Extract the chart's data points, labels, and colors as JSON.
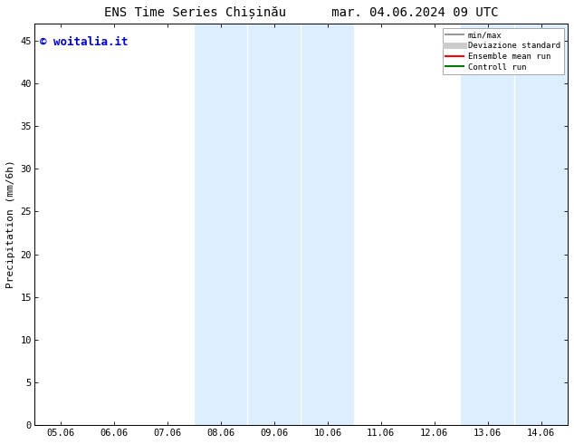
{
  "title": "ENS Time Series Chișinău      mar. 04.06.2024 09 UTC",
  "ylabel": "Precipitation (mm/6h)",
  "watermark": "© woitalia.it",
  "x_ticks": [
    "05.06",
    "06.06",
    "07.06",
    "08.06",
    "09.06",
    "10.06",
    "11.06",
    "12.06",
    "13.06",
    "14.06"
  ],
  "x_tick_positions": [
    0,
    1,
    2,
    3,
    4,
    5,
    6,
    7,
    8,
    9
  ],
  "ylim": [
    0,
    47
  ],
  "yticks": [
    0,
    5,
    10,
    15,
    20,
    25,
    30,
    35,
    40,
    45
  ],
  "xlim": [
    -0.5,
    9.5
  ],
  "shaded_bands": [
    {
      "x_start": 2.5,
      "x_end": 3.5,
      "color": "#ddeeff"
    },
    {
      "x_start": 3.5,
      "x_end": 4.5,
      "color": "#ddeeff"
    },
    {
      "x_start": 4.5,
      "x_end": 5.5,
      "color": "#ddeeff"
    },
    {
      "x_start": 7.5,
      "x_end": 8.5,
      "color": "#ddeeff"
    },
    {
      "x_start": 8.5,
      "x_end": 9.5,
      "color": "#ddeeff"
    }
  ],
  "band_dividers": [
    3.5,
    4.5,
    8.5
  ],
  "legend_entries": [
    {
      "label": "min/max",
      "color": "#999999",
      "lw": 1.5
    },
    {
      "label": "Deviazione standard",
      "color": "#cccccc",
      "lw": 5
    },
    {
      "label": "Ensemble mean run",
      "color": "#ff0000",
      "lw": 1.5
    },
    {
      "label": "Controll run",
      "color": "#007700",
      "lw": 1.5
    }
  ],
  "bg_color": "#ffffff",
  "plot_bg_color": "#ffffff",
  "shaded_color": "#ddeeff",
  "divider_color": "#ffffff",
  "watermark_color": "#0000cc",
  "title_fontsize": 10,
  "watermark_fontsize": 9,
  "ylabel_fontsize": 8,
  "tick_fontsize": 7.5
}
